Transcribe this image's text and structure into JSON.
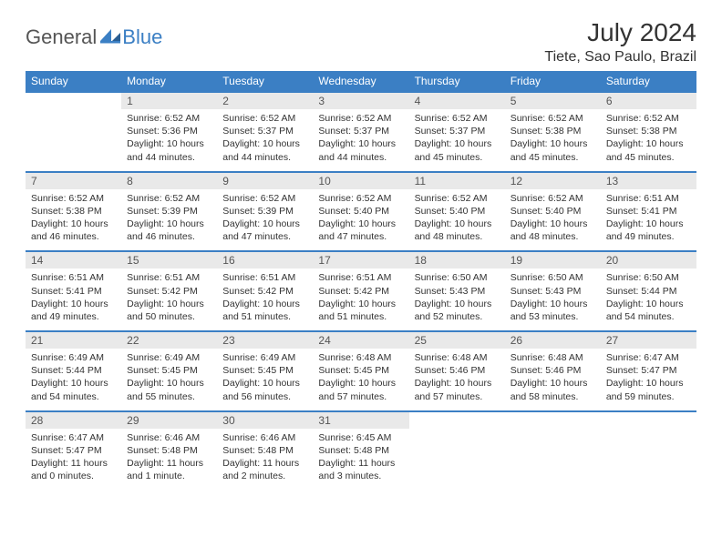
{
  "logo": {
    "word1": "General",
    "word2": "Blue"
  },
  "title": "July 2024",
  "location": "Tiete, Sao Paulo, Brazil",
  "colors": {
    "header_bg": "#3b7fc4",
    "header_text": "#ffffff",
    "daynum_bg": "#e9e9e9",
    "rule": "#3b7fc4",
    "body_text": "#333333",
    "logo_gray": "#555555",
    "logo_blue": "#3b7fc4",
    "page_bg": "#ffffff"
  },
  "weekdays": [
    "Sunday",
    "Monday",
    "Tuesday",
    "Wednesday",
    "Thursday",
    "Friday",
    "Saturday"
  ],
  "weeks": [
    [
      {
        "n": "",
        "sr": "",
        "ss": "",
        "dl": ""
      },
      {
        "n": "1",
        "sr": "6:52 AM",
        "ss": "5:36 PM",
        "dl": "10 hours and 44 minutes."
      },
      {
        "n": "2",
        "sr": "6:52 AM",
        "ss": "5:37 PM",
        "dl": "10 hours and 44 minutes."
      },
      {
        "n": "3",
        "sr": "6:52 AM",
        "ss": "5:37 PM",
        "dl": "10 hours and 44 minutes."
      },
      {
        "n": "4",
        "sr": "6:52 AM",
        "ss": "5:37 PM",
        "dl": "10 hours and 45 minutes."
      },
      {
        "n": "5",
        "sr": "6:52 AM",
        "ss": "5:38 PM",
        "dl": "10 hours and 45 minutes."
      },
      {
        "n": "6",
        "sr": "6:52 AM",
        "ss": "5:38 PM",
        "dl": "10 hours and 45 minutes."
      }
    ],
    [
      {
        "n": "7",
        "sr": "6:52 AM",
        "ss": "5:38 PM",
        "dl": "10 hours and 46 minutes."
      },
      {
        "n": "8",
        "sr": "6:52 AM",
        "ss": "5:39 PM",
        "dl": "10 hours and 46 minutes."
      },
      {
        "n": "9",
        "sr": "6:52 AM",
        "ss": "5:39 PM",
        "dl": "10 hours and 47 minutes."
      },
      {
        "n": "10",
        "sr": "6:52 AM",
        "ss": "5:40 PM",
        "dl": "10 hours and 47 minutes."
      },
      {
        "n": "11",
        "sr": "6:52 AM",
        "ss": "5:40 PM",
        "dl": "10 hours and 48 minutes."
      },
      {
        "n": "12",
        "sr": "6:52 AM",
        "ss": "5:40 PM",
        "dl": "10 hours and 48 minutes."
      },
      {
        "n": "13",
        "sr": "6:51 AM",
        "ss": "5:41 PM",
        "dl": "10 hours and 49 minutes."
      }
    ],
    [
      {
        "n": "14",
        "sr": "6:51 AM",
        "ss": "5:41 PM",
        "dl": "10 hours and 49 minutes."
      },
      {
        "n": "15",
        "sr": "6:51 AM",
        "ss": "5:42 PM",
        "dl": "10 hours and 50 minutes."
      },
      {
        "n": "16",
        "sr": "6:51 AM",
        "ss": "5:42 PM",
        "dl": "10 hours and 51 minutes."
      },
      {
        "n": "17",
        "sr": "6:51 AM",
        "ss": "5:42 PM",
        "dl": "10 hours and 51 minutes."
      },
      {
        "n": "18",
        "sr": "6:50 AM",
        "ss": "5:43 PM",
        "dl": "10 hours and 52 minutes."
      },
      {
        "n": "19",
        "sr": "6:50 AM",
        "ss": "5:43 PM",
        "dl": "10 hours and 53 minutes."
      },
      {
        "n": "20",
        "sr": "6:50 AM",
        "ss": "5:44 PM",
        "dl": "10 hours and 54 minutes."
      }
    ],
    [
      {
        "n": "21",
        "sr": "6:49 AM",
        "ss": "5:44 PM",
        "dl": "10 hours and 54 minutes."
      },
      {
        "n": "22",
        "sr": "6:49 AM",
        "ss": "5:45 PM",
        "dl": "10 hours and 55 minutes."
      },
      {
        "n": "23",
        "sr": "6:49 AM",
        "ss": "5:45 PM",
        "dl": "10 hours and 56 minutes."
      },
      {
        "n": "24",
        "sr": "6:48 AM",
        "ss": "5:45 PM",
        "dl": "10 hours and 57 minutes."
      },
      {
        "n": "25",
        "sr": "6:48 AM",
        "ss": "5:46 PM",
        "dl": "10 hours and 57 minutes."
      },
      {
        "n": "26",
        "sr": "6:48 AM",
        "ss": "5:46 PM",
        "dl": "10 hours and 58 minutes."
      },
      {
        "n": "27",
        "sr": "6:47 AM",
        "ss": "5:47 PM",
        "dl": "10 hours and 59 minutes."
      }
    ],
    [
      {
        "n": "28",
        "sr": "6:47 AM",
        "ss": "5:47 PM",
        "dl": "11 hours and 0 minutes."
      },
      {
        "n": "29",
        "sr": "6:46 AM",
        "ss": "5:48 PM",
        "dl": "11 hours and 1 minute."
      },
      {
        "n": "30",
        "sr": "6:46 AM",
        "ss": "5:48 PM",
        "dl": "11 hours and 2 minutes."
      },
      {
        "n": "31",
        "sr": "6:45 AM",
        "ss": "5:48 PM",
        "dl": "11 hours and 3 minutes."
      },
      {
        "n": "",
        "sr": "",
        "ss": "",
        "dl": ""
      },
      {
        "n": "",
        "sr": "",
        "ss": "",
        "dl": ""
      },
      {
        "n": "",
        "sr": "",
        "ss": "",
        "dl": ""
      }
    ]
  ],
  "labels": {
    "sunrise": "Sunrise:",
    "sunset": "Sunset:",
    "daylight": "Daylight:"
  }
}
